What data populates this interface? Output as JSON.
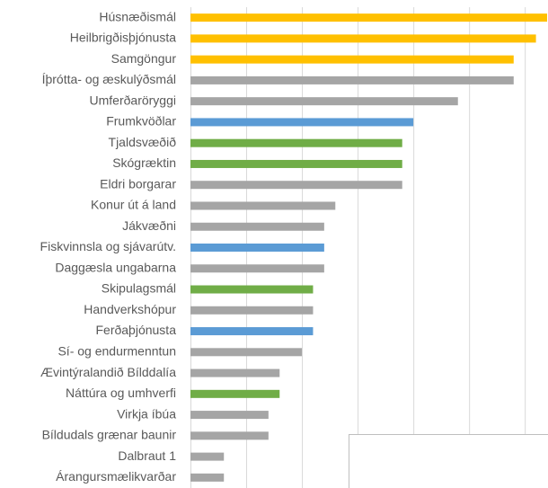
{
  "chart_data": {
    "type": "bar",
    "orientation": "horizontal",
    "categories": [
      "Húsnæðismál",
      "Heilbrigðisþjónusta",
      "Samgöngur",
      "Íþrótta- og æskulýðsmál",
      "Umferðaröryggi",
      "Frumkvöðlar",
      "Tjaldsvæðið",
      "Skógræktin",
      "Eldri borgarar",
      "Konur út á land",
      "Jákvæðni",
      "Fiskvinnsla og sjávarútv.",
      "Daggæsla ungabarna",
      "Skipulagsmál",
      "Handverkshópur",
      "Ferðaþjónusta",
      "Sí- og endurmenntun",
      "Ævintýralandið Bílddalía",
      "Náttúra og umhverfi",
      "Virkja íbúa",
      "Bíldudals grænar baunir",
      "Dalbraut 1",
      "Árangursmælikvarðar"
    ],
    "values": [
      32,
      31,
      29,
      29,
      24,
      20,
      19,
      19,
      19,
      13,
      12,
      12,
      12,
      11,
      11,
      11,
      10,
      8,
      8,
      7,
      7,
      3,
      3
    ],
    "colors": [
      "#ffc000",
      "#ffc000",
      "#ffc000",
      "#a5a5a5",
      "#a5a5a5",
      "#5b9bd5",
      "#70ad47",
      "#70ad47",
      "#a5a5a5",
      "#a5a5a5",
      "#a5a5a5",
      "#5b9bd5",
      "#a5a5a5",
      "#70ad47",
      "#a5a5a5",
      "#5b9bd5",
      "#a5a5a5",
      "#a5a5a5",
      "#70ad47",
      "#a5a5a5",
      "#a5a5a5",
      "#a5a5a5",
      "#a5a5a5"
    ],
    "xlim": [
      0,
      32
    ],
    "xticks": [
      0,
      5,
      10,
      15,
      20,
      25,
      30
    ],
    "grid": true
  }
}
